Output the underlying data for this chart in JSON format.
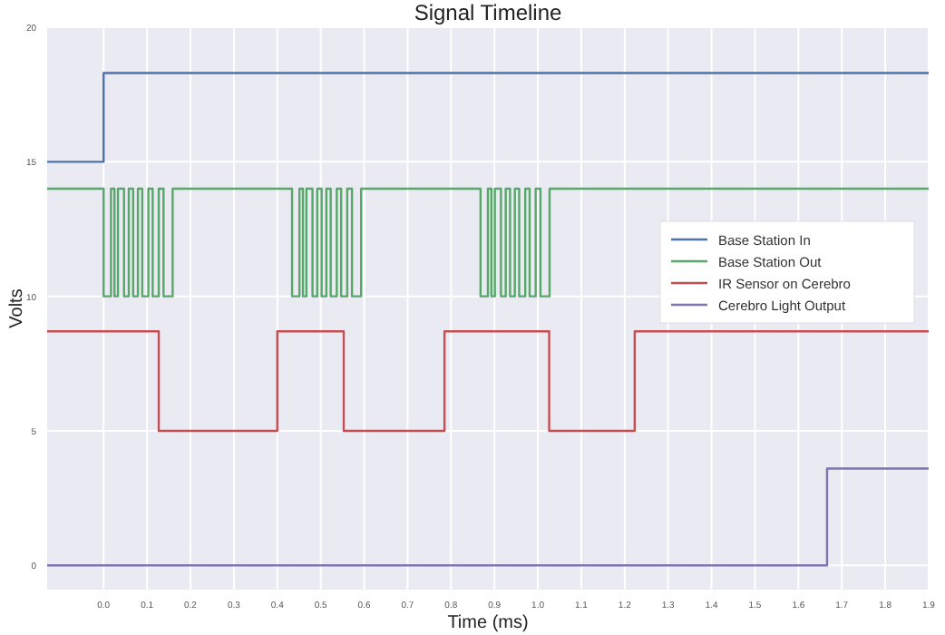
{
  "chart_data": {
    "type": "step",
    "title": "Signal Timeline",
    "xlabel": "Time (ms)",
    "ylabel": "Volts",
    "xlim": [
      -0.13,
      1.9
    ],
    "ylim": [
      -0.9,
      20
    ],
    "xticks": [
      {
        "value": 0,
        "label": "0.0"
      },
      0.1,
      0.2,
      0.3,
      0.4,
      0.5,
      0.6,
      0.7,
      0.8,
      0.9,
      {
        "value": 1,
        "label": "1.0"
      },
      1.1,
      1.2,
      1.3,
      1.4,
      1.5,
      1.6,
      1.7,
      1.8,
      1.9
    ],
    "yticks": [
      0,
      5,
      10,
      15,
      20
    ],
    "grid": true,
    "legend": "right",
    "series": [
      {
        "name": "Base Station In",
        "color": "#4c72b0",
        "x": [
          -0.13,
          0.0,
          1.9
        ],
        "values": [
          15,
          18.3,
          18.3
        ]
      },
      {
        "name": "Base Station Out",
        "color": "#55a868",
        "x": [
          -0.13,
          0.0,
          0.017,
          0.025,
          0.033,
          0.047,
          0.058,
          0.068,
          0.079,
          0.089,
          0.103,
          0.113,
          0.127,
          0.138,
          0.159,
          0.434,
          0.451,
          0.459,
          0.467,
          0.481,
          0.492,
          0.502,
          0.513,
          0.523,
          0.537,
          0.547,
          0.561,
          0.572,
          0.593,
          0.868,
          0.885,
          0.893,
          0.901,
          0.915,
          0.926,
          0.936,
          0.947,
          0.957,
          0.971,
          0.981,
          0.995,
          1.006,
          1.027,
          1.9
        ],
        "values": [
          14,
          10,
          14,
          10,
          14,
          10,
          14,
          10,
          14,
          10,
          14,
          10,
          14,
          10,
          14,
          10,
          14,
          10,
          14,
          10,
          14,
          10,
          14,
          10,
          14,
          10,
          14,
          10,
          14,
          10,
          14,
          10,
          14,
          10,
          14,
          10,
          14,
          10,
          14,
          10,
          14,
          10,
          14,
          14
        ]
      },
      {
        "name": "IR Sensor on Cerebro",
        "color": "#c44e52",
        "x": [
          -0.13,
          0.127,
          0.4,
          0.553,
          0.785,
          1.026,
          1.223,
          1.9
        ],
        "values": [
          8.7,
          5,
          8.7,
          5,
          8.7,
          5,
          8.7,
          8.7
        ]
      },
      {
        "name": "Cerebro Light Output",
        "color": "#8172b2",
        "x": [
          -0.13,
          1.666,
          1.9
        ],
        "values": [
          0,
          3.6,
          3.6
        ]
      }
    ]
  }
}
